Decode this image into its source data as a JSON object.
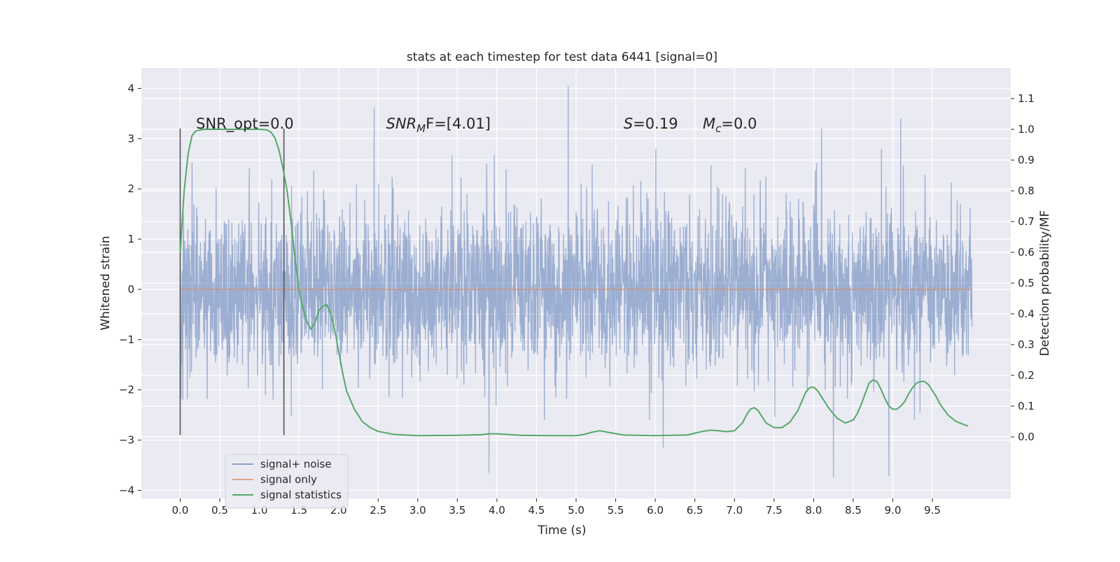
{
  "chart_data": {
    "type": "line",
    "title": "stats at each timestep for test data 6441 [signal=0]",
    "xlabel": "Time (s)",
    "ylabel_left": "Whitened strain",
    "ylabel_right": "Detection probability/MF",
    "xlim": [
      -0.49,
      10.49
    ],
    "ylim_left": [
      -4.16,
      4.41
    ],
    "ylim_right": [
      -0.2,
      1.2
    ],
    "x_ticks": [
      "0.0",
      "0.5",
      "1.0",
      "1.5",
      "2.0",
      "2.5",
      "3.0",
      "3.5",
      "4.0",
      "4.5",
      "5.0",
      "5.5",
      "6.0",
      "6.5",
      "7.0",
      "7.5",
      "8.0",
      "8.5",
      "9.0",
      "9.5"
    ],
    "y_ticks_left": [
      "4",
      "3",
      "2",
      "1",
      "0",
      "−1",
      "−2",
      "−3",
      "−4"
    ],
    "y_ticks_right": [
      "1.1",
      "1.0",
      "0.9",
      "0.8",
      "0.7",
      "0.6",
      "0.5",
      "0.4",
      "0.3",
      "0.2",
      "0.1",
      "0.0"
    ],
    "grid": true,
    "legend_position": "bottom-left",
    "series": [
      {
        "name": "signal+ noise",
        "color": "#4c72b0",
        "axis": "left",
        "kind": "dense noise trace",
        "x_range": [
          0.0,
          10.0
        ],
        "sample_rate_hz": 300,
        "envelope_typical": [
          -1.6,
          1.9
        ],
        "extremes": [
          {
            "x": 2.45,
            "y": 3.62
          },
          {
            "x": 4.9,
            "y": 4.05
          },
          {
            "x": 8.1,
            "y": 3.2
          },
          {
            "x": 9.1,
            "y": 3.4
          },
          {
            "x": 3.9,
            "y": -3.65
          },
          {
            "x": 6.1,
            "y": -3.15
          },
          {
            "x": 8.25,
            "y": -3.75
          },
          {
            "x": 8.95,
            "y": -3.72
          }
        ]
      },
      {
        "name": "signal only",
        "color": "#dd8452",
        "axis": "left",
        "x": [
          0.0,
          10.0
        ],
        "y": [
          0.0,
          0.0
        ]
      },
      {
        "name": "signal statistics",
        "color": "#55a868",
        "axis": "right",
        "x": [
          0.0,
          0.05,
          0.1,
          0.15,
          0.2,
          0.3,
          0.5,
          0.8,
          1.0,
          1.1,
          1.15,
          1.2,
          1.25,
          1.3,
          1.35,
          1.4,
          1.45,
          1.5,
          1.55,
          1.6,
          1.65,
          1.7,
          1.75,
          1.8,
          1.85,
          1.9,
          1.95,
          2.0,
          2.05,
          2.1,
          2.2,
          2.3,
          2.4,
          2.5,
          2.7,
          3.0,
          3.5,
          3.8,
          3.9,
          4.0,
          4.3,
          4.7,
          5.0,
          5.1,
          5.2,
          5.3,
          5.4,
          5.6,
          6.0,
          6.4,
          6.5,
          6.6,
          6.7,
          6.8,
          6.9,
          7.0,
          7.1,
          7.15,
          7.2,
          7.25,
          7.3,
          7.35,
          7.4,
          7.5,
          7.6,
          7.7,
          7.8,
          7.85,
          7.9,
          7.95,
          8.0,
          8.05,
          8.1,
          8.15,
          8.2,
          8.3,
          8.4,
          8.5,
          8.55,
          8.6,
          8.65,
          8.7,
          8.75,
          8.8,
          8.85,
          8.9,
          8.95,
          9.0,
          9.05,
          9.1,
          9.15,
          9.2,
          9.25,
          9.3,
          9.35,
          9.4,
          9.45,
          9.5,
          9.55,
          9.6,
          9.7,
          9.8,
          9.9,
          9.95
        ],
        "y": [
          0.6,
          0.8,
          0.92,
          0.98,
          0.995,
          1.0,
          1.0,
          1.0,
          1.0,
          0.998,
          0.99,
          0.97,
          0.93,
          0.87,
          0.8,
          0.7,
          0.58,
          0.48,
          0.42,
          0.375,
          0.35,
          0.37,
          0.41,
          0.425,
          0.43,
          0.4,
          0.35,
          0.28,
          0.21,
          0.15,
          0.09,
          0.05,
          0.03,
          0.018,
          0.008,
          0.004,
          0.005,
          0.007,
          0.01,
          0.01,
          0.005,
          0.004,
          0.004,
          0.008,
          0.015,
          0.02,
          0.015,
          0.006,
          0.004,
          0.006,
          0.012,
          0.018,
          0.022,
          0.02,
          0.017,
          0.02,
          0.045,
          0.07,
          0.09,
          0.095,
          0.085,
          0.065,
          0.045,
          0.03,
          0.03,
          0.048,
          0.085,
          0.115,
          0.145,
          0.16,
          0.162,
          0.15,
          0.13,
          0.11,
          0.09,
          0.06,
          0.045,
          0.055,
          0.075,
          0.105,
          0.14,
          0.175,
          0.185,
          0.18,
          0.155,
          0.125,
          0.1,
          0.09,
          0.09,
          0.1,
          0.115,
          0.14,
          0.16,
          0.175,
          0.18,
          0.18,
          0.17,
          0.15,
          0.13,
          0.105,
          0.07,
          0.05,
          0.04,
          0.035
        ]
      }
    ],
    "vertical_markers": [
      {
        "x": 0.0,
        "y_range": [
          -2.9,
          3.2
        ]
      },
      {
        "x": 1.31,
        "y_range": [
          -2.9,
          3.2
        ]
      }
    ],
    "annotations": [
      {
        "id": "snr_opt",
        "text": "SNR_opt=0.0",
        "x": 0.2,
        "y": 3.2
      },
      {
        "id": "snr_mf",
        "base": "SNR",
        "sub": "M",
        "tail": "F=[4.01]",
        "x": 2.6,
        "y": 3.2
      },
      {
        "id": "s_stat",
        "base": "S",
        "tail": "=0.19",
        "x": 5.6,
        "y": 3.2
      },
      {
        "id": "mc",
        "base": "M",
        "sub": "c",
        "tail": "=0.0",
        "x": 6.6,
        "y": 3.2
      }
    ]
  }
}
